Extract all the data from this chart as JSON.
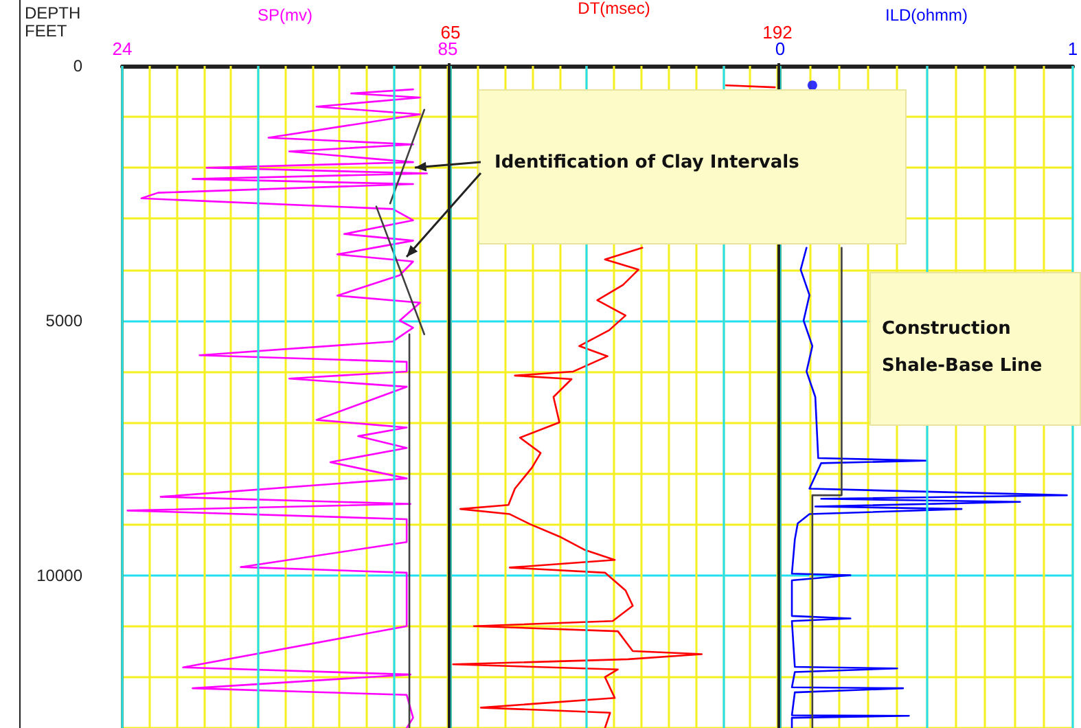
{
  "chart_data": [
    {
      "type": "line",
      "orientation": "horizontal",
      "xlabel": "SP(mv)",
      "ylabel": "DEPTH FEET",
      "xlim": [
        24,
        85
      ],
      "xticks": [
        24,
        {
          "value": 29.1,
          "label": null
        },
        {
          "value": 34.2,
          "label": null
        },
        {
          "value": 39.3,
          "label": null
        },
        {
          "value": 44.3,
          "label": null
        },
        {
          "value": 49.4,
          "label": null
        },
        {
          "value": 54.5,
          "label": null
        },
        {
          "value": 59.6,
          "label": null
        },
        {
          "value": 64.7,
          "label": null
        },
        {
          "value": 69.8,
          "label": null
        },
        {
          "value": 74.8,
          "label": null
        },
        {
          "value": 79.9,
          "label": null
        },
        85
      ],
      "ylim": [
        13000,
        0
      ],
      "yticks": [
        0,
        {
          "value": 1000,
          "label": null
        },
        {
          "value": 2000,
          "label": null
        },
        {
          "value": 3000,
          "label": null
        },
        {
          "value": 4000,
          "label": null
        },
        5000,
        {
          "value": 6000,
          "label": null
        },
        {
          "value": 7000,
          "label": null
        },
        {
          "value": 8000,
          "label": null
        },
        {
          "value": 9000,
          "label": null
        },
        10000,
        {
          "value": 11000,
          "label": null
        },
        {
          "value": 12000,
          "label": null
        },
        {
          "value": 13000,
          "label": null
        }
      ],
      "grid": true,
      "marker": "none",
      "line_style": "solid",
      "series": [
        {
          "color": "#ff00ff",
          "values": [
            78.5,
            66.9,
            79.8,
            60.4,
            79.8,
            51.4,
            78.5,
            55.3,
            78.5,
            39.8,
            81.1,
            37.2,
            78.5,
            30.7,
            27.6,
            74.7,
            78.5,
            65.6,
            78.5,
            64.3,
            78.5,
            76.0,
            64.3,
            79.8,
            76.0,
            78.5,
            74.7,
            38.5,
            77.3,
            77.3,
            55.3,
            77.3,
            60.4,
            77.3,
            68.2,
            77.3,
            63.0,
            77.3,
            31.2,
            78.0,
            25.0,
            77.3,
            77.3,
            46.2,
            77.3,
            77.3,
            77.3,
            35.4,
            78.0,
            37.2,
            77.3,
            78.5,
            77.3
          ],
          "x": [
            460,
            540,
            620,
            800,
            950,
            1410,
            1540,
            1680,
            1890,
            2000,
            2110,
            2220,
            2320,
            2490,
            2600,
            2810,
            3030,
            3300,
            3430,
            3700,
            3840,
            4110,
            4510,
            4650,
            5000,
            5140,
            5410,
            5680,
            5810,
            6000,
            6140,
            6300,
            6950,
            7100,
            7270,
            7500,
            7780,
            8100,
            8460,
            8600,
            8730,
            8900,
            9350,
            9840,
            9950,
            10400,
            11000,
            11810,
            11950,
            12220,
            12350,
            12800,
            13000
          ]
        },
        {
          "color": "#404040",
          "values": [
            80.6,
            74.2
          ],
          "x": [
            860,
            2700
          ]
        },
        {
          "color": "#404040",
          "values": [
            71.6,
            80.6
          ],
          "x": [
            2760,
            5270
          ]
        },
        {
          "color": "#404040",
          "values": [
            77.8,
            77.8
          ],
          "x": [
            5270,
            13000
          ]
        }
      ]
    },
    {
      "type": "line",
      "orientation": "horizontal",
      "xlabel": "DT(msec)",
      "xlim": [
        65,
        192
      ],
      "xticks": [
        65,
        {
          "value": 75.6,
          "label": null
        },
        {
          "value": 86.2,
          "label": null
        },
        {
          "value": 96.8,
          "label": null
        },
        {
          "value": 107.3,
          "label": null
        },
        {
          "value": 117.9,
          "label": null
        },
        {
          "value": 128.5,
          "label": null
        },
        {
          "value": 139.1,
          "label": null
        },
        {
          "value": 149.7,
          "label": null
        },
        {
          "value": 160.3,
          "label": null
        },
        {
          "value": 170.8,
          "label": null
        },
        {
          "value": 181.4,
          "label": null
        },
        192
      ],
      "ylim": [
        13000,
        0
      ],
      "yticks": [
        0,
        {
          "value": 1000,
          "label": null
        },
        {
          "value": 2000,
          "label": null
        },
        {
          "value": 3000,
          "label": null
        },
        {
          "value": 4000,
          "label": null
        },
        5000,
        {
          "value": 6000,
          "label": null
        },
        {
          "value": 7000,
          "label": null
        },
        {
          "value": 8000,
          "label": null
        },
        {
          "value": 9000,
          "label": null
        },
        10000,
        {
          "value": 11000,
          "label": null
        },
        {
          "value": 12000,
          "label": null
        },
        {
          "value": 13000,
          "label": null
        }
      ],
      "tick_labels": "x",
      "grid": true,
      "marker": "none",
      "line_style": "solid",
      "annotations": [
        "Identification of Clay Intervals"
      ],
      "series": [
        {
          "color": "#ff0000",
          "values": [
            139.5,
            125,
            138,
            132,
            122,
            133,
            126.6,
            115,
            126,
            112.7,
            90,
            112,
            105,
            107.3,
            92,
            100,
            96.6,
            90,
            87.5,
            68.8,
            88,
            96,
            107.3,
            117,
            128.8,
            88,
            125,
            133,
            135.8,
            128,
            74.1,
            130,
            135.8,
            162.6,
            134,
            66,
            130,
            125,
            128.8,
            76.8,
            127,
            125
          ],
          "x": [
            3570,
            3800,
            4000,
            4300,
            4600,
            4900,
            5190,
            5500,
            5700,
            6000,
            6080,
            6150,
            6500,
            7000,
            7300,
            7600,
            7890,
            8300,
            8620,
            8700,
            8800,
            9000,
            9240,
            9500,
            9700,
            9850,
            9950,
            10300,
            10600,
            10900,
            11000,
            11100,
            11490,
            11550,
            11650,
            11750,
            11850,
            12000,
            12410,
            12600,
            12700,
            13000
          ]
        },
        {
          "color": "#ff0000",
          "values": [
            172,
            191
          ],
          "x": [
            380,
            420
          ]
        }
      ]
    },
    {
      "type": "line",
      "orientation": "horizontal",
      "xlabel": "ILD(ohmm)",
      "xlim": [
        0,
        1
      ],
      "xticks": [
        0,
        {
          "value": 0.1,
          "label": null
        },
        {
          "value": 0.2,
          "label": null
        },
        {
          "value": 0.3,
          "label": null
        },
        {
          "value": 0.4,
          "label": null
        },
        {
          "value": 0.5,
          "label": null
        },
        {
          "value": 0.6,
          "label": null
        },
        {
          "value": 0.7,
          "label": null
        },
        {
          "value": 0.8,
          "label": null
        },
        {
          "value": 0.9,
          "label": null
        },
        1
      ],
      "ylim": [
        13000,
        0
      ],
      "yticks": [
        0,
        {
          "value": 1000,
          "label": null
        },
        {
          "value": 2000,
          "label": null
        },
        {
          "value": 3000,
          "label": null
        },
        {
          "value": 4000,
          "label": null
        },
        5000,
        {
          "value": 6000,
          "label": null
        },
        {
          "value": 7000,
          "label": null
        },
        {
          "value": 8000,
          "label": null
        },
        {
          "value": 9000,
          "label": null
        },
        10000,
        {
          "value": 11000,
          "label": null
        },
        {
          "value": 12000,
          "label": null
        },
        {
          "value": 13000,
          "label": null
        }
      ],
      "tick_labels": "x",
      "grid": true,
      "marker": "none",
      "line_style": "solid",
      "annotations": [
        "Construction Shale-Base Line"
      ],
      "series": [
        {
          "color": "#0000ff",
          "values": [
            0.09,
            0.07,
            0.1,
            0.08,
            0.11,
            0.09,
            0.12,
            0.13,
            0.5,
            0.14,
            0.1,
            0.98,
            0.14,
            0.82,
            0.12,
            0.62,
            0.1,
            0.06,
            0.05,
            0.04,
            0.24,
            0.04,
            0.04,
            0.24,
            0.04,
            0.05,
            0.4,
            0.05,
            0.04,
            0.42,
            0.05,
            0.04,
            0.44,
            0.04,
            0.04
          ],
          "x": [
            3570,
            4000,
            4500,
            5000,
            5500,
            6000,
            6500,
            7700,
            7750,
            7800,
            8300,
            8430,
            8500,
            8560,
            8650,
            8700,
            8800,
            8980,
            9300,
            9970,
            10000,
            10100,
            10800,
            10850,
            10900,
            11800,
            11830,
            11900,
            12200,
            12220,
            12300,
            12750,
            12760,
            12800,
            13000
          ]
        },
        {
          "color": "#404040",
          "values": [
            0.21,
            0.21,
            0.11,
            0.11
          ],
          "x": [
            3570,
            8430,
            8430,
            13000
          ]
        },
        {
          "type": "scatter",
          "marker": "circle",
          "color": "#0000ff",
          "values": [
            0.11
          ],
          "x": [
            380
          ]
        }
      ]
    }
  ]
}
